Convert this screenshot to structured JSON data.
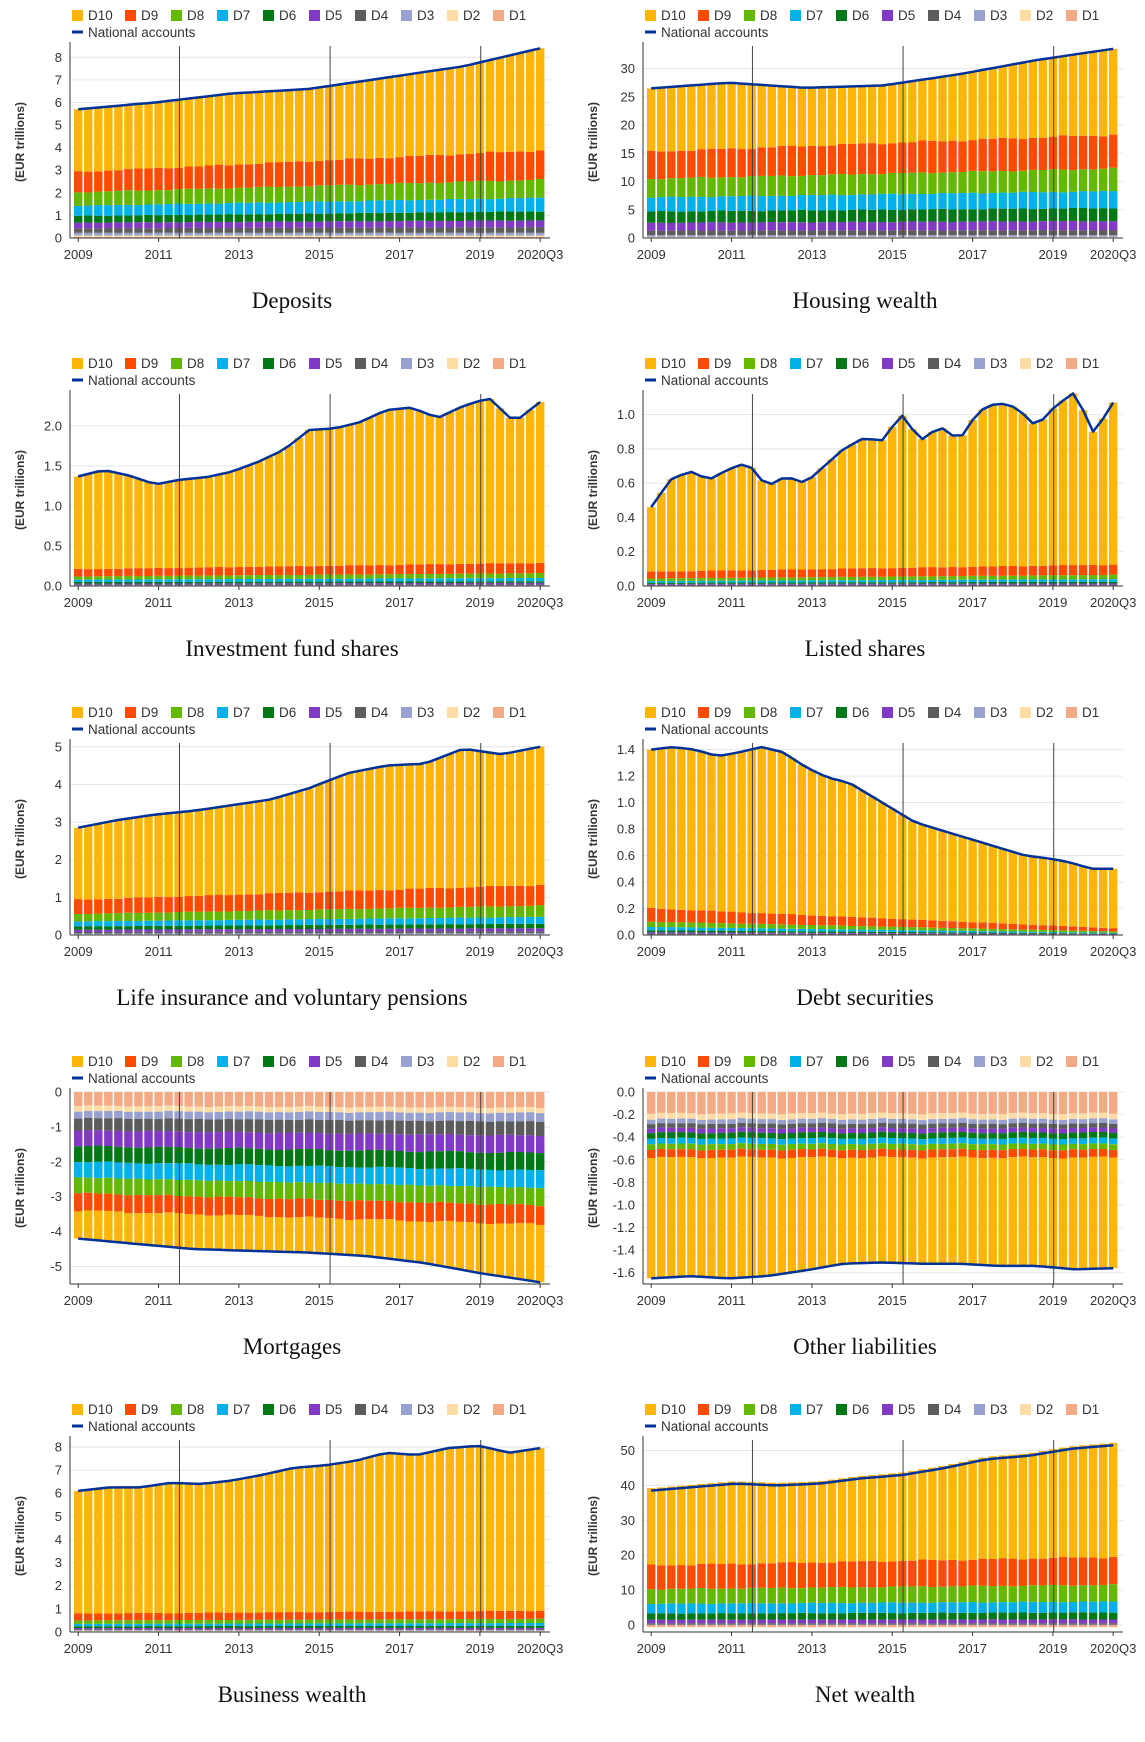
{
  "legend": {
    "deciles": [
      "D10",
      "D9",
      "D8",
      "D7",
      "D6",
      "D5",
      "D4",
      "D3",
      "D2",
      "D1"
    ],
    "national_label": "National accounts"
  },
  "colors": {
    "D10": "#FDB508",
    "D9": "#FF4B00",
    "D8": "#65B800",
    "D7": "#00B1EA",
    "D6": "#007816",
    "D5": "#8139C6",
    "D4": "#5C5C5C",
    "D3": "#98A1D0",
    "D2": "#FDDCA5",
    "D1": "#F3AA85",
    "national": "#003299"
  },
  "chart_data": [
    {
      "type": "bar",
      "title": "Deposits",
      "ylabel": "(EUR trillions)",
      "ylim": [
        0,
        8.5
      ],
      "yticks": [
        "0",
        "1",
        "2",
        "3",
        "4",
        "5",
        "6",
        "7",
        "8"
      ],
      "xticks": [
        "2009",
        "2011",
        "2013",
        "2015",
        "2017",
        "2019",
        "2020Q3"
      ],
      "n_quarters": 47,
      "series": [
        {
          "name": "D10",
          "start": 2.6,
          "end": 4.3
        },
        {
          "name": "D9",
          "start": 0.9,
          "end": 1.3
        },
        {
          "name": "D8",
          "start": 0.6,
          "end": 0.8
        },
        {
          "name": "D7",
          "start": 0.45,
          "end": 0.6
        },
        {
          "name": "D6",
          "start": 0.3,
          "end": 0.4
        },
        {
          "name": "D5",
          "start": 0.25,
          "end": 0.3
        },
        {
          "name": "D4",
          "start": 0.2,
          "end": 0.25
        },
        {
          "name": "D3",
          "start": 0.12,
          "end": 0.12
        },
        {
          "name": "D2",
          "start": 0.06,
          "end": 0.06
        },
        {
          "name": "D1",
          "start": 0.05,
          "end": 0.05
        }
      ],
      "national_accounts": [
        5.7,
        6.0,
        6.4,
        6.6,
        7.1,
        7.6,
        8.4
      ]
    },
    {
      "type": "bar",
      "title": "Housing wealth",
      "ylabel": "(EUR trillions)",
      "ylim": [
        0,
        34
      ],
      "yticks": [
        "0",
        "5",
        "10",
        "15",
        "20",
        "25",
        "30"
      ],
      "xticks": [
        "2009",
        "2011",
        "2013",
        "2015",
        "2017",
        "2019",
        "2020Q3"
      ],
      "n_quarters": 47,
      "series": [
        {
          "name": "D10",
          "start": 11.5,
          "end": 15.3
        },
        {
          "name": "D9",
          "start": 4.8,
          "end": 6.0
        },
        {
          "name": "D8",
          "start": 3.3,
          "end": 4.0
        },
        {
          "name": "D7",
          "start": 2.5,
          "end": 3.0
        },
        {
          "name": "D6",
          "start": 2.0,
          "end": 2.3
        },
        {
          "name": "D5",
          "start": 1.4,
          "end": 1.6
        },
        {
          "name": "D4",
          "start": 0.8,
          "end": 0.9
        },
        {
          "name": "D3",
          "start": 0.3,
          "end": 0.3
        },
        {
          "name": "D2",
          "start": 0.1,
          "end": 0.1
        },
        {
          "name": "D1",
          "start": 0.1,
          "end": 0.1
        }
      ],
      "national_accounts": [
        26.5,
        27.5,
        26.6,
        27.0,
        29.0,
        31.5,
        33.5
      ]
    },
    {
      "type": "bar",
      "title": "Investment fund shares",
      "ylabel": "(EUR trillions)",
      "ylim": [
        0,
        2.4
      ],
      "yticks": [
        "0.0",
        "0.5",
        "1.0",
        "1.5",
        "2.0"
      ],
      "xticks": [
        "2009",
        "2011",
        "2013",
        "2015",
        "2017",
        "2019",
        "2020Q3"
      ],
      "n_quarters": 47,
      "series": [
        {
          "name": "D10",
          "start": 1.16,
          "end": 2.02
        },
        {
          "name": "D9",
          "start": 0.09,
          "end": 0.13
        },
        {
          "name": "D8",
          "start": 0.04,
          "end": 0.06
        },
        {
          "name": "D7",
          "start": 0.03,
          "end": 0.04
        },
        {
          "name": "D6",
          "start": 0.02,
          "end": 0.02
        },
        {
          "name": "D5",
          "start": 0.01,
          "end": 0.02
        },
        {
          "name": "D4",
          "start": 0.01,
          "end": 0.01
        },
        {
          "name": "D3",
          "start": 0.005,
          "end": 0.005
        },
        {
          "name": "D2",
          "start": 0.003,
          "end": 0.003
        },
        {
          "name": "D1",
          "start": 0.002,
          "end": 0.002
        }
      ],
      "national_accounts": [
        1.37,
        1.45,
        1.38,
        1.27,
        1.33,
        1.36,
        1.43,
        1.55,
        1.7,
        1.95,
        1.97,
        2.05,
        2.2,
        2.23,
        2.1,
        2.25,
        2.35,
        2.05,
        2.3
      ]
    },
    {
      "type": "bar",
      "title": "Listed shares",
      "ylabel": "(EUR trillions)",
      "ylim": [
        0,
        1.12
      ],
      "yticks": [
        "0.0",
        "0.2",
        "0.4",
        "0.6",
        "0.8",
        "1.0"
      ],
      "xticks": [
        "2009",
        "2011",
        "2013",
        "2015",
        "2017",
        "2019",
        "2020Q3"
      ],
      "n_quarters": 47,
      "series": [
        {
          "name": "D10",
          "start": 0.38,
          "end": 0.94
        },
        {
          "name": "D9",
          "start": 0.04,
          "end": 0.06
        },
        {
          "name": "D8",
          "start": 0.015,
          "end": 0.025
        },
        {
          "name": "D7",
          "start": 0.01,
          "end": 0.015
        },
        {
          "name": "D6",
          "start": 0.007,
          "end": 0.01
        },
        {
          "name": "D5",
          "start": 0.005,
          "end": 0.007
        },
        {
          "name": "D4",
          "start": 0.003,
          "end": 0.004
        },
        {
          "name": "D3",
          "start": 0.002,
          "end": 0.002
        },
        {
          "name": "D2",
          "start": 0.001,
          "end": 0.001
        },
        {
          "name": "D1",
          "start": 0.001,
          "end": 0.001
        }
      ],
      "national_accounts": [
        0.46,
        0.62,
        0.67,
        0.62,
        0.68,
        0.72,
        0.58,
        0.64,
        0.6,
        0.7,
        0.8,
        0.86,
        0.85,
        1.0,
        0.85,
        0.93,
        0.85,
        1.02,
        1.07,
        1.04,
        0.93,
        1.05,
        1.13,
        0.89,
        1.07
      ]
    },
    {
      "type": "bar",
      "title": "Life insurance and voluntary pensions",
      "ylabel": "(EUR trillions)",
      "ylim": [
        0,
        5.1
      ],
      "yticks": [
        "0",
        "1",
        "2",
        "3",
        "4",
        "5"
      ],
      "xticks": [
        "2009",
        "2011",
        "2013",
        "2015",
        "2017",
        "2019",
        "2020Q3"
      ],
      "n_quarters": 47,
      "series": [
        {
          "name": "D10",
          "start": 1.95,
          "end": 3.65
        },
        {
          "name": "D9",
          "start": 0.38,
          "end": 0.55
        },
        {
          "name": "D8",
          "start": 0.2,
          "end": 0.3
        },
        {
          "name": "D7",
          "start": 0.13,
          "end": 0.18
        },
        {
          "name": "D6",
          "start": 0.09,
          "end": 0.12
        },
        {
          "name": "D5",
          "start": 0.06,
          "end": 0.08
        },
        {
          "name": "D4",
          "start": 0.04,
          "end": 0.05
        },
        {
          "name": "D3",
          "start": 0.02,
          "end": 0.03
        },
        {
          "name": "D2",
          "start": 0.01,
          "end": 0.01
        },
        {
          "name": "D1",
          "start": 0.01,
          "end": 0.01
        }
      ],
      "national_accounts": [
        2.85,
        3.05,
        3.2,
        3.3,
        3.45,
        3.6,
        3.9,
        4.3,
        4.5,
        4.55,
        4.95,
        4.8,
        5.0
      ]
    },
    {
      "type": "bar",
      "title": "Debt securities",
      "ylabel": "(EUR trillions)",
      "ylim": [
        0,
        1.45
      ],
      "yticks": [
        "0.0",
        "0.2",
        "0.4",
        "0.6",
        "0.8",
        "1.0",
        "1.2",
        "1.4"
      ],
      "xticks": [
        "2009",
        "2011",
        "2013",
        "2015",
        "2017",
        "2019",
        "2020Q3"
      ],
      "n_quarters": 47,
      "series": [
        {
          "name": "D10",
          "start": 1.2,
          "end": 0.46
        },
        {
          "name": "D9",
          "start": 0.1,
          "end": 0.025
        },
        {
          "name": "D8",
          "start": 0.04,
          "end": 0.01
        },
        {
          "name": "D7",
          "start": 0.025,
          "end": 0.005
        },
        {
          "name": "D6",
          "start": 0.015,
          "end": 0.004
        },
        {
          "name": "D5",
          "start": 0.01,
          "end": 0.003
        },
        {
          "name": "D4",
          "start": 0.006,
          "end": 0.002
        },
        {
          "name": "D3",
          "start": 0.003,
          "end": 0.001
        },
        {
          "name": "D2",
          "start": 0.001,
          "end": 0.001
        },
        {
          "name": "D1",
          "start": 0.001,
          "end": 0.001
        }
      ],
      "national_accounts": [
        1.4,
        1.42,
        1.4,
        1.35,
        1.38,
        1.42,
        1.38,
        1.27,
        1.19,
        1.15,
        1.05,
        0.95,
        0.85,
        0.8,
        0.75,
        0.7,
        0.65,
        0.6,
        0.58,
        0.55,
        0.5,
        0.5
      ]
    },
    {
      "type": "bar",
      "title": "Mortgages",
      "ylabel": "(EUR trillions)",
      "ylim": [
        -5.5,
        0
      ],
      "yticks": [
        "0",
        "-1",
        "-2",
        "-3",
        "-4",
        "-5"
      ],
      "xticks": [
        "2009",
        "2011",
        "2013",
        "2015",
        "2017",
        "2019",
        "2020Q3"
      ],
      "n_quarters": 47,
      "series": [
        {
          "name": "D10",
          "start": -1.05,
          "end": -1.65
        },
        {
          "name": "D9",
          "start": -0.5,
          "end": -0.55
        },
        {
          "name": "D8",
          "start": -0.45,
          "end": -0.5
        },
        {
          "name": "D7",
          "start": -0.45,
          "end": -0.5
        },
        {
          "name": "D6",
          "start": -0.45,
          "end": -0.5
        },
        {
          "name": "D5",
          "start": -0.45,
          "end": -0.5
        },
        {
          "name": "D4",
          "start": -0.35,
          "end": -0.4
        },
        {
          "name": "D3",
          "start": -0.2,
          "end": -0.25
        },
        {
          "name": "D2",
          "start": -0.15,
          "end": -0.15
        },
        {
          "name": "D1",
          "start": -0.4,
          "end": -0.45
        }
      ],
      "national_accounts": [
        -4.2,
        -4.35,
        -4.5,
        -4.55,
        -4.6,
        -4.7,
        -4.9,
        -5.2,
        -5.45
      ]
    },
    {
      "type": "bar",
      "title": "Other liabilities",
      "ylabel": "(EUR trillions)",
      "ylim": [
        -1.7,
        0
      ],
      "yticks": [
        "0.0",
        "-0.2",
        "-0.4",
        "-0.6",
        "-0.8",
        "-1.0",
        "-1.2",
        "-1.4",
        "-1.6"
      ],
      "xticks": [
        "2009",
        "2011",
        "2013",
        "2015",
        "2017",
        "2019",
        "2020Q3"
      ],
      "n_quarters": 47,
      "series": [
        {
          "name": "D10",
          "start": -1.0,
          "end": -1.0
        },
        {
          "name": "D9",
          "start": -0.07,
          "end": -0.07
        },
        {
          "name": "D8",
          "start": -0.05,
          "end": -0.05
        },
        {
          "name": "D7",
          "start": -0.05,
          "end": -0.05
        },
        {
          "name": "D6",
          "start": -0.05,
          "end": -0.05
        },
        {
          "name": "D5",
          "start": -0.04,
          "end": -0.04
        },
        {
          "name": "D4",
          "start": -0.04,
          "end": -0.04
        },
        {
          "name": "D3",
          "start": -0.04,
          "end": -0.04
        },
        {
          "name": "D2",
          "start": -0.05,
          "end": -0.05
        },
        {
          "name": "D1",
          "start": -0.19,
          "end": -0.19
        }
      ],
      "national_accounts": [
        -1.65,
        -1.63,
        -1.65,
        -1.63,
        -1.58,
        -1.52,
        -1.51,
        -1.52,
        -1.52,
        -1.54,
        -1.54,
        -1.57,
        -1.56
      ]
    },
    {
      "type": "bar",
      "title": "Business wealth",
      "ylabel": "(EUR trillions)",
      "ylim": [
        0,
        8.3
      ],
      "yticks": [
        "0",
        "1",
        "2",
        "3",
        "4",
        "5",
        "6",
        "7",
        "8"
      ],
      "xticks": [
        "2009",
        "2011",
        "2013",
        "2015",
        "2017",
        "2019",
        "2020Q3"
      ],
      "n_quarters": 47,
      "series": [
        {
          "name": "D10",
          "start": 5.2,
          "end": 7.0
        },
        {
          "name": "D9",
          "start": 0.3,
          "end": 0.35
        },
        {
          "name": "D8",
          "start": 0.15,
          "end": 0.18
        },
        {
          "name": "D7",
          "start": 0.1,
          "end": 0.12
        },
        {
          "name": "D6",
          "start": 0.08,
          "end": 0.09
        },
        {
          "name": "D5",
          "start": 0.05,
          "end": 0.06
        },
        {
          "name": "D4",
          "start": 0.04,
          "end": 0.04
        },
        {
          "name": "D3",
          "start": 0.03,
          "end": 0.03
        },
        {
          "name": "D2",
          "start": 0.02,
          "end": 0.02
        },
        {
          "name": "D1",
          "start": 0.03,
          "end": 0.03
        }
      ],
      "national_accounts": [
        6.1,
        6.25,
        6.25,
        6.45,
        6.4,
        6.55,
        6.8,
        7.1,
        7.2,
        7.4,
        7.75,
        7.65,
        7.95,
        8.05,
        7.75,
        7.95
      ]
    },
    {
      "type": "bar",
      "title": "Net wealth",
      "ylabel": "(EUR trillions)",
      "ylim": [
        -2,
        53
      ],
      "yticks": [
        "0",
        "10",
        "20",
        "30",
        "40",
        "50"
      ],
      "xticks": [
        "2009",
        "2011",
        "2013",
        "2015",
        "2017",
        "2019",
        "2020Q3"
      ],
      "n_quarters": 47,
      "series": [
        {
          "name": "D10",
          "start": 21.5,
          "end": 30.5
        },
        {
          "name": "D9",
          "start": 6.8,
          "end": 8.0
        },
        {
          "name": "D8",
          "start": 4.2,
          "end": 4.8
        },
        {
          "name": "D7",
          "start": 2.8,
          "end": 3.1
        },
        {
          "name": "D6",
          "start": 1.8,
          "end": 2.0
        },
        {
          "name": "D5",
          "start": 1.0,
          "end": 1.1
        },
        {
          "name": "D4",
          "start": 0.4,
          "end": 0.4
        },
        {
          "name": "D3",
          "start": 0.1,
          "end": 0.1
        },
        {
          "name": "D2",
          "start": -0.1,
          "end": -0.1
        },
        {
          "name": "D1",
          "start": -0.6,
          "end": -0.6
        }
      ],
      "national_accounts": [
        38.5,
        39.5,
        40.5,
        40.0,
        40.5,
        42.0,
        43.0,
        45.0,
        47.5,
        48.5,
        50.5,
        51.5
      ]
    }
  ]
}
